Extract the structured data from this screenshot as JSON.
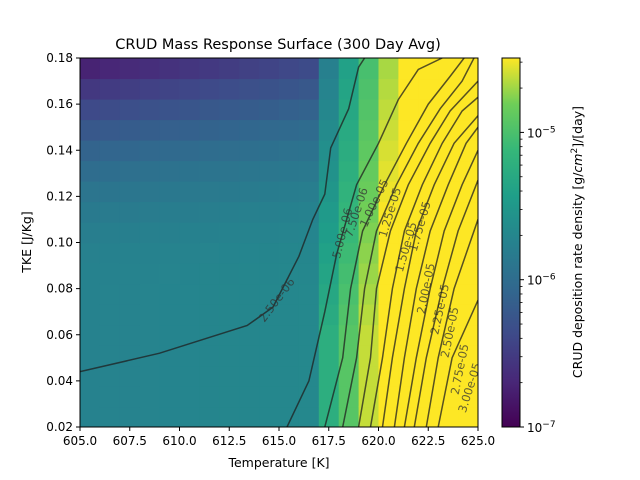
{
  "chart_data": {
    "type": "heatmap",
    "title": "CRUD Mass Response Surface (300 Day Avg)",
    "xlabel": "Temperature [K]",
    "ylabel": "TKE [J/Kg]",
    "xlim": [
      605.0,
      625.0
    ],
    "ylim": [
      0.02,
      0.18
    ],
    "x_ticks": [
      "605.0",
      "607.5",
      "610.0",
      "612.5",
      "615.0",
      "617.5",
      "620.0",
      "622.5",
      "625.0"
    ],
    "y_ticks": [
      "0.02",
      "0.04",
      "0.06",
      "0.08",
      "0.10",
      "0.12",
      "0.14",
      "0.16",
      "0.18"
    ],
    "colorbar": {
      "label": "CRUD deposition rate density [g/cm²]/[day]",
      "label_parts": {
        "pre": "CRUD deposition rate density [g/",
        "cm": "cm",
        "sup": "2",
        "post": "]/[day]"
      },
      "scale": "log",
      "range": [
        1e-07,
        3.2e-05
      ],
      "ticks": [
        {
          "value": 1e-07,
          "base": "10",
          "exp": "−7"
        },
        {
          "value": 1e-06,
          "base": "10",
          "exp": "−6"
        },
        {
          "value": 1e-05,
          "base": "10",
          "exp": "−5"
        }
      ],
      "colormap": "viridis"
    },
    "grid_size": [
      20,
      18
    ],
    "contour_levels": [
      "2.50e-06",
      "5.00e-06",
      "7.50e-06",
      "1.00e-05",
      "1.25e-05",
      "1.50e-05",
      "1.75e-05",
      "2.00e-05",
      "2.25e-05",
      "2.50e-05",
      "2.75e-05",
      "3.00e-05"
    ],
    "contours": [
      {
        "label": "2.50e-06",
        "label_at": [
          614.9,
          0.075
        ],
        "points": [
          [
            605.0,
            0.044
          ],
          [
            609.0,
            0.052
          ],
          [
            613.4,
            0.064
          ],
          [
            614.7,
            0.072
          ],
          [
            616.0,
            0.094
          ],
          [
            616.7,
            0.11
          ],
          [
            617.3,
            0.121
          ],
          [
            617.6,
            0.141
          ],
          [
            618.5,
            0.158
          ],
          [
            619.0,
            0.176
          ],
          [
            619.3,
            0.18
          ]
        ]
      },
      {
        "label": "5.00e-06",
        "label_at": [
          618.2,
          0.104
        ],
        "points": [
          [
            615.4,
            0.02
          ],
          [
            616.5,
            0.04
          ],
          [
            617.3,
            0.07
          ],
          [
            617.9,
            0.095
          ],
          [
            618.9,
            0.125
          ],
          [
            620.0,
            0.143
          ],
          [
            621.0,
            0.162
          ],
          [
            622.0,
            0.175
          ],
          [
            623.2,
            0.18
          ]
        ]
      },
      {
        "label": "7.50e-06",
        "label_at": [
          618.9,
          0.113
        ],
        "points": [
          [
            617.3,
            0.02
          ],
          [
            618.2,
            0.05
          ],
          [
            618.6,
            0.08
          ],
          [
            619.2,
            0.105
          ],
          [
            620.3,
            0.125
          ],
          [
            621.4,
            0.143
          ],
          [
            622.5,
            0.16
          ],
          [
            623.6,
            0.172
          ],
          [
            624.3,
            0.18
          ]
        ]
      },
      {
        "label": "1.00e-05",
        "label_at": [
          619.8,
          0.117
        ],
        "points": [
          [
            618.2,
            0.02
          ],
          [
            618.9,
            0.05
          ],
          [
            619.3,
            0.08
          ],
          [
            619.9,
            0.105
          ],
          [
            620.9,
            0.125
          ],
          [
            622.0,
            0.143
          ],
          [
            623.1,
            0.158
          ],
          [
            624.2,
            0.17
          ],
          [
            624.8,
            0.18
          ]
        ]
      },
      {
        "label": "1.25e-05",
        "label_at": [
          620.6,
          0.113
        ],
        "points": [
          [
            619.0,
            0.02
          ],
          [
            619.6,
            0.05
          ],
          [
            619.9,
            0.08
          ],
          [
            620.6,
            0.105
          ],
          [
            621.5,
            0.125
          ],
          [
            622.6,
            0.143
          ],
          [
            623.6,
            0.157
          ],
          [
            625.0,
            0.17
          ]
        ]
      },
      {
        "label": "1.50e-05",
        "label_at": [
          621.4,
          0.098
        ],
        "points": [
          [
            619.6,
            0.02
          ],
          [
            620.2,
            0.05
          ],
          [
            620.7,
            0.08
          ],
          [
            621.3,
            0.105
          ],
          [
            622.2,
            0.125
          ],
          [
            623.2,
            0.143
          ],
          [
            624.2,
            0.157
          ],
          [
            625.0,
            0.163
          ]
        ]
      },
      {
        "label": "1.75e-05",
        "label_at": [
          622.1,
          0.107
        ],
        "points": [
          [
            620.2,
            0.02
          ],
          [
            620.7,
            0.05
          ],
          [
            621.3,
            0.08
          ],
          [
            621.9,
            0.105
          ],
          [
            622.8,
            0.125
          ],
          [
            623.8,
            0.143
          ],
          [
            625.0,
            0.155
          ]
        ]
      },
      {
        "label": "2.00e-05",
        "label_at": [
          622.4,
          0.08
        ],
        "points": [
          [
            620.8,
            0.02
          ],
          [
            621.3,
            0.05
          ],
          [
            621.9,
            0.08
          ],
          [
            622.6,
            0.105
          ],
          [
            623.5,
            0.125
          ],
          [
            624.4,
            0.143
          ],
          [
            625.0,
            0.15
          ]
        ]
      },
      {
        "label": "2.25e-05",
        "label_at": [
          623.1,
          0.071
        ],
        "points": [
          [
            621.3,
            0.02
          ],
          [
            621.9,
            0.05
          ],
          [
            622.6,
            0.08
          ],
          [
            623.3,
            0.105
          ],
          [
            624.2,
            0.125
          ],
          [
            625.0,
            0.14
          ]
        ]
      },
      {
        "label": "2.50e-05",
        "label_at": [
          623.6,
          0.061
        ],
        "points": [
          [
            621.8,
            0.02
          ],
          [
            622.4,
            0.05
          ],
          [
            623.2,
            0.08
          ],
          [
            624.0,
            0.105
          ],
          [
            625.0,
            0.127
          ]
        ]
      },
      {
        "label": "2.75e-05",
        "label_at": [
          624.1,
          0.045
        ],
        "points": [
          [
            622.4,
            0.02
          ],
          [
            623.0,
            0.05
          ],
          [
            623.8,
            0.08
          ],
          [
            625.0,
            0.11
          ]
        ]
      },
      {
        "label": "3.00e-05",
        "label_at": [
          624.6,
          0.037
        ],
        "points": [
          [
            623.0,
            0.02
          ],
          [
            623.7,
            0.05
          ],
          [
            625.0,
            0.075
          ]
        ]
      }
    ]
  }
}
